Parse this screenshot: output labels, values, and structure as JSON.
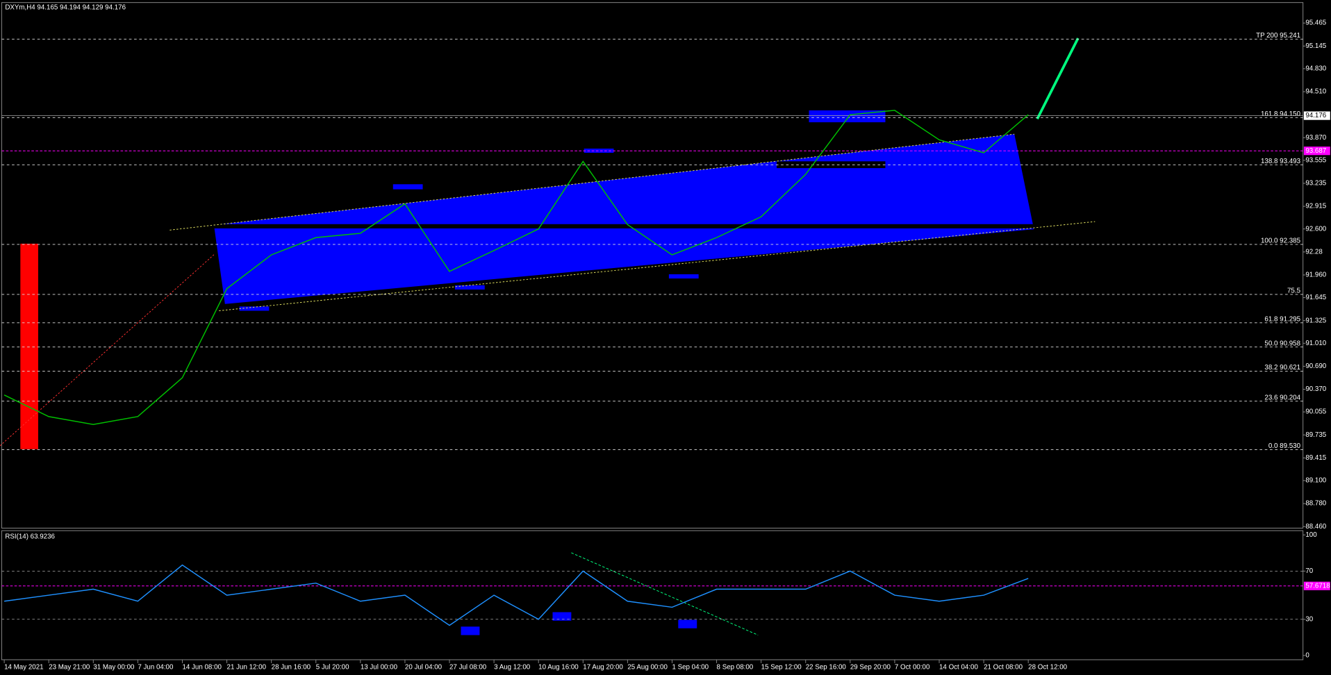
{
  "chart_data": [
    {
      "type": "line",
      "title": "DXYm,H4 94.165 94.194 94.129 94.176",
      "categories": [
        "14 May 2021",
        "23 May 21:00",
        "31 May 00:00",
        "7 Jun 04:00",
        "14 Jun 08:00",
        "21 Jun 12:00",
        "28 Jun 16:00",
        "5 Jul 20:00",
        "13 Jul 00:00",
        "20 Jul 04:00",
        "27 Jul 08:00",
        "3 Aug 12:00",
        "10 Aug 16:00",
        "17 Aug 20:00",
        "25 Aug 00:00",
        "1 Sep 04:00",
        "8 Sep 08:00",
        "15 Sep 12:00",
        "22 Sep 16:00",
        "29 Sep 20:00",
        "7 Oct 00:00",
        "14 Oct 04:00",
        "21 Oct 08:00",
        "28 Oct 12:00"
      ],
      "values": [
        90.29,
        89.99,
        89.88,
        89.99,
        90.53,
        91.77,
        92.24,
        92.48,
        92.54,
        92.95,
        92.01,
        92.3,
        92.6,
        93.54,
        92.66,
        92.24,
        92.48,
        92.77,
        93.36,
        94.19,
        94.25,
        93.84,
        93.66,
        94.19
      ],
      "color": "#00c000",
      "ylim": [
        88.45,
        95.75
      ],
      "yticks": [
        95.465,
        95.145,
        {
          "value": 94.83,
          "label": "94.830"
        },
        {
          "value": 94.51,
          "label": "94.510"
        },
        {
          "value": 93.87,
          "label": "93.870"
        },
        93.555,
        93.235,
        92.915,
        {
          "value": 92.6,
          "label": "92.600"
        },
        92.28,
        {
          "value": 91.96,
          "label": "91.960"
        },
        91.645,
        91.325,
        {
          "value": 91.01,
          "label": "91.010"
        },
        {
          "value": 90.69,
          "label": "90.690"
        },
        {
          "value": 90.37,
          "label": "90.370"
        },
        90.055,
        89.735,
        89.415,
        {
          "value": 89.1,
          "label": "89.100"
        },
        {
          "value": 88.78,
          "label": "88.780"
        },
        {
          "value": 88.46,
          "label": "88.460"
        }
      ],
      "levels": [
        {
          "value": 95.241,
          "label": "TP 200 95.241"
        },
        {
          "value": 94.15,
          "label": "161.8 94.150"
        },
        {
          "value": 93.493,
          "label": "138.8 93.493"
        },
        {
          "value": 92.385,
          "label": "100.0 92.385"
        },
        {
          "value": 91.69,
          "label": "75.5"
        },
        {
          "value": 91.295,
          "label": "61.8 91.295"
        },
        {
          "value": 90.958,
          "label": "50.0 90.958"
        },
        {
          "value": 90.621,
          "label": "38.2 90.621"
        },
        {
          "value": 90.204,
          "label": "23.6 90.204"
        },
        {
          "value": 89.53,
          "label": "0.0 89.530"
        }
      ],
      "marker_line": {
        "value": 93.687,
        "label": "93.687",
        "color": "#ff00ff"
      },
      "last_price": {
        "value": 94.176,
        "label": "94.176"
      }
    },
    {
      "type": "line",
      "title": "RSI(14) 63.9236",
      "values": [
        45,
        50,
        55,
        45,
        75,
        50,
        55,
        60,
        45,
        50,
        25,
        50,
        30,
        70,
        45,
        40,
        55,
        55,
        55,
        70,
        50,
        45,
        50,
        63.9236
      ],
      "color": "#1e90ff",
      "ylim": [
        0,
        100
      ],
      "yticks": [
        100,
        70,
        30,
        0
      ],
      "marker_line": {
        "value": 57.6718,
        "label": "57.6718",
        "color": "#ff00ff"
      }
    }
  ]
}
